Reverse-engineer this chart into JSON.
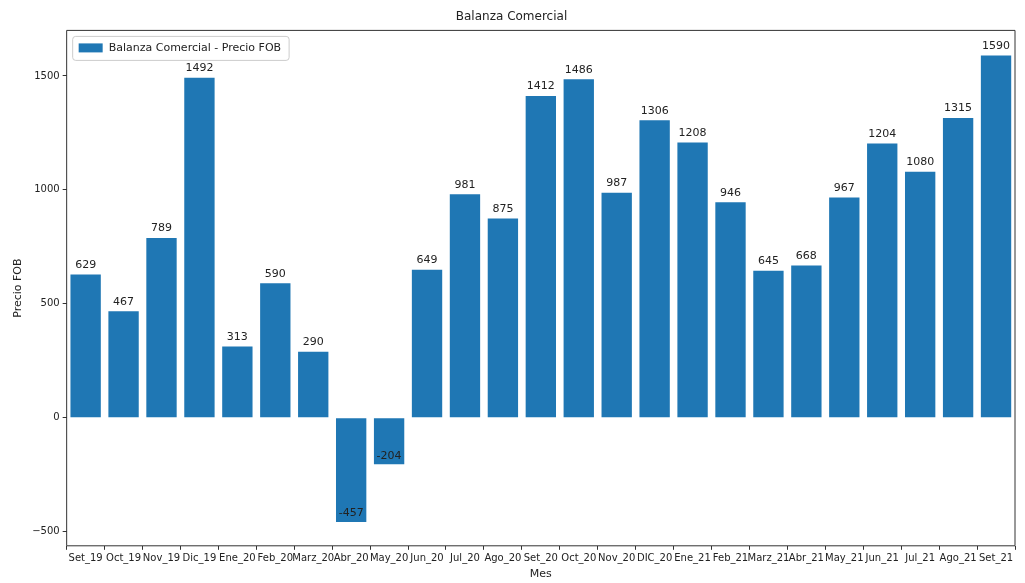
{
  "chart_data": {
    "type": "bar",
    "title": "Balanza Comercial",
    "xlabel": "Mes",
    "ylabel": "Precio FOB",
    "categories": [
      "Set_19",
      "Oct_19",
      "Nov_19",
      "Dic_19",
      "Ene_20",
      "Feb_20",
      "Marz_20",
      "Abr_20",
      "May_20",
      "Jun_20",
      "Jul_20",
      "Ago_20",
      "Set_20",
      "Oct_20",
      "Nov_20",
      "DIC_20",
      "Ene_21",
      "Feb_21",
      "Marz_21",
      "Abr_21",
      "May_21",
      "Jun_21",
      "Jul_21",
      "Ago_21",
      "Set_21"
    ],
    "series": [
      {
        "name": "Balanza Comercial - Precio FOB",
        "color": "#1f77b4",
        "values": [
          629,
          467,
          789,
          1492,
          313,
          590,
          290,
          -457,
          -204,
          649,
          981,
          875,
          1412,
          1486,
          987,
          1306,
          1208,
          946,
          645,
          668,
          967,
          1204,
          1080,
          1315,
          1590
        ]
      }
    ],
    "ylim": [
      -562,
      1700
    ],
    "yticks": [
      -500,
      0,
      500,
      1000,
      1500
    ],
    "grid": false,
    "legend": "top left",
    "data_labels": true
  }
}
